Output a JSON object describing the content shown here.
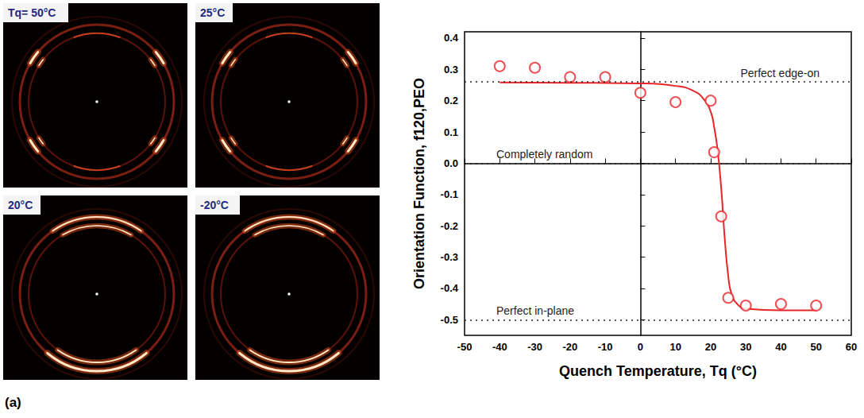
{
  "panel_letter": "(a)",
  "images": [
    {
      "label": "Tq= 50°C",
      "pattern": "edge-on"
    },
    {
      "label": "25°C",
      "pattern": "edge-on"
    },
    {
      "label": "20°C",
      "pattern": "in-plane"
    },
    {
      "label": "-20°C",
      "pattern": "in-plane"
    }
  ],
  "chart_data": {
    "type": "scatter",
    "x_label": "Quench Temperature, Tq (°C)",
    "y_label": "Orientation Function, f120,PEO",
    "xlim": [
      -50,
      60
    ],
    "xticks": [
      -50,
      -40,
      -30,
      -20,
      -10,
      0,
      10,
      20,
      30,
      40,
      50,
      60
    ],
    "ylim": [
      -0.55,
      0.42
    ],
    "yticks": [
      -0.5,
      -0.4,
      -0.3,
      -0.2,
      -0.1,
      {
        "value": 0,
        "label": "0.0"
      },
      0.1,
      0.2,
      0.3,
      0.4
    ],
    "grid": false,
    "series": [
      {
        "type": "scatter",
        "marker": "open_circle",
        "color": "#e8262a",
        "x": [
          -40,
          -30,
          -20,
          -10,
          0,
          10,
          20,
          21,
          23,
          25,
          30,
          40,
          50
        ],
        "values": [
          0.31,
          0.305,
          0.275,
          0.275,
          0.225,
          0.195,
          0.2,
          0.035,
          -0.17,
          -0.43,
          -0.455,
          -0.45,
          -0.455
        ]
      },
      {
        "type": "line",
        "line_style": "solid",
        "color": "#e8262a",
        "x": [
          -40,
          -20,
          0,
          10,
          15,
          18,
          20,
          21,
          22,
          23,
          24,
          25,
          26,
          28,
          30,
          40,
          50
        ],
        "values": [
          0.258,
          0.257,
          0.255,
          0.247,
          0.232,
          0.205,
          0.165,
          0.115,
          0.04,
          -0.08,
          -0.24,
          -0.36,
          -0.42,
          -0.455,
          -0.465,
          -0.47,
          -0.47
        ]
      }
    ],
    "reference_lines": [
      {
        "value": 0.255,
        "label": "Perfect edge-on"
      },
      {
        "value": 0,
        "label": "Completely random"
      },
      {
        "value": -0.5,
        "label": "Perfect in-plane"
      }
    ]
  }
}
